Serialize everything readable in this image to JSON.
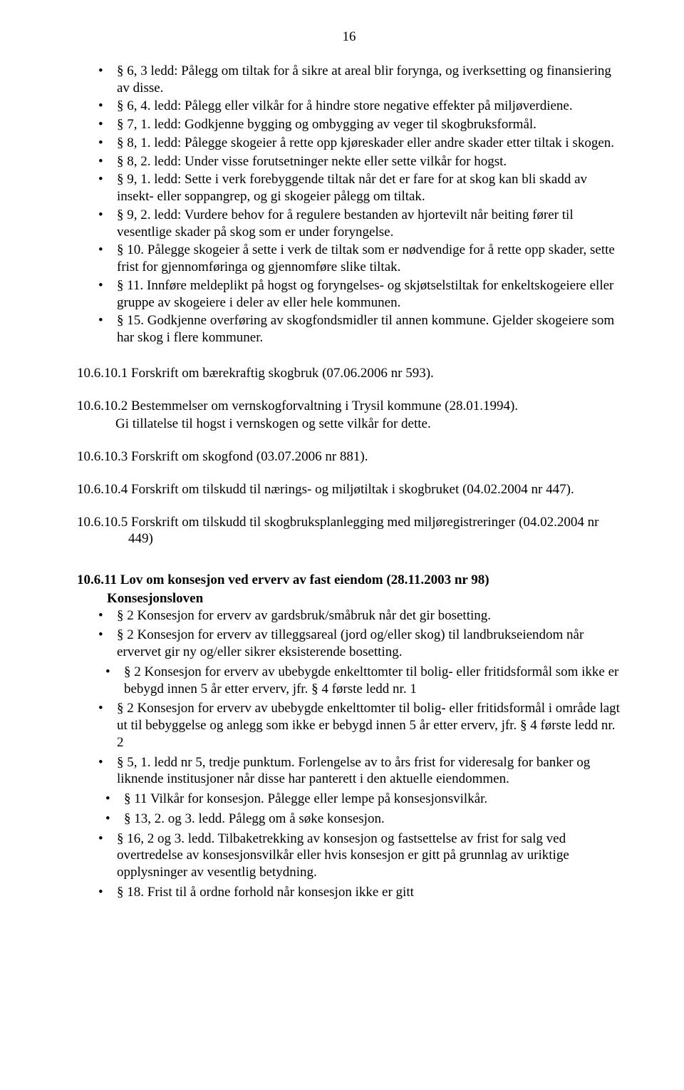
{
  "page_number": "16",
  "bullets_top": [
    "§ 6, 3 ledd: Pålegg om tiltak for å sikre at areal blir forynga, og iverksetting og finansiering av disse.",
    "§ 6, 4. ledd: Pålegg eller vilkår for å hindre store negative effekter på miljøverdiene.",
    "§ 7, 1. ledd: Godkjenne bygging og ombygging av veger til skogbruksformål.",
    "§ 8, 1. ledd: Pålegge skogeier å rette opp kjøreskader eller andre skader etter tiltak i skogen.",
    "§ 8, 2. ledd: Under visse forutsetninger nekte eller sette vilkår for hogst.",
    "§ 9, 1. ledd: Sette i verk forebyggende tiltak når det er fare for at skog kan bli skadd av insekt-  eller soppangrep, og gi skogeier pålegg om tiltak.",
    "§ 9, 2. ledd: Vurdere behov for å regulere bestanden av hjortevilt når beiting fører til vesentlige skader på skog som er under foryngelse.",
    "§ 10. Pålegge skogeier å sette i verk de tiltak som er nødvendige for å rette opp skader, sette frist for gjennomføringa og gjennomføre slike tiltak.",
    "§ 11. Innføre meldeplikt på hogst og foryngelses- og skjøtselstiltak for enkeltskogeiere eller gruppe av skogeiere i deler av eller hele kommunen.",
    "§ 15. Godkjenne overføring av skogfondsmidler til annen kommune. Gjelder skogeiere som har skog i flere kommuner."
  ],
  "middle_paras": [
    {
      "main": "10.6.10.1 Forskrift om bærekraftig skogbruk (07.06.2006 nr 593)."
    },
    {
      "main": "10.6.10.2 Bestemmelser om vernskogforvaltning i Trysil kommune (28.01.1994).",
      "sub": "Gi tillatelse til hogst i vernskogen og sette vilkår for dette."
    },
    {
      "main": "10.6.10.3 Forskrift om skogfond (03.07.2006 nr 881)."
    },
    {
      "main": "10.6.10.4 Forskrift om tilskudd til nærings- og miljøtiltak i skogbruket (04.02.2004 nr 447)."
    },
    {
      "main": "10.6.10.5 Forskrift om tilskudd til skogbruksplanlegging med miljøregistreringer (04.02.2004 nr 449)"
    }
  ],
  "section": {
    "head": "10.6.11 Lov om konsesjon ved erverv av fast eiendom (28.11.2003 nr 98)",
    "sub": "Konsesjonsloven",
    "bullets": [
      {
        "text": "§ 2 Konsesjon for erverv av gardsbruk/småbruk når det gir bosetting.",
        "shift": false
      },
      {
        "text": "§ 2 Konsesjon for erverv av tilleggsareal (jord og/eller skog) til landbrukseiendom når ervervet gir ny og/eller sikrer eksisterende bosetting.",
        "shift": false
      },
      {
        "text": " § 2 Konsesjon for erverv av ubebygde enkelttomter til bolig- eller fritidsformål som ikke er bebygd innen 5 år etter erverv, jfr. § 4 første ledd nr. 1",
        "shift": true
      },
      {
        "text": "§ 2 Konsesjon for erverv av ubebygde enkelttomter til bolig- eller fritidsformål i område lagt ut til bebyggelse og anlegg som ikke er bebygd innen 5 år etter erverv, jfr. § 4 første ledd nr. 2",
        "shift": false
      },
      {
        "text": "§ 5, 1. ledd nr 5, tredje punktum. Forlengelse av to års frist for videresalg for banker og liknende institusjoner når disse har panterett i den aktuelle eiendommen.",
        "shift": false
      },
      {
        "text": "§ 11 Vilkår for konsesjon. Pålegge eller lempe på konsesjonsvilkår.",
        "shift": true
      },
      {
        "text": "§ 13, 2. og 3. ledd. Pålegg om å søke konsesjon.",
        "shift": true
      },
      {
        "text": "§ 16, 2 og 3. ledd. Tilbaketrekking av konsesjon og fastsettelse av frist for salg ved overtredelse av konsesjonsvilkår eller hvis konsesjon er gitt på grunnlag av uriktige opplysninger av vesentlig betydning.",
        "shift": false
      },
      {
        "text": "§ 18. Frist til å ordne forhold når konsesjon ikke er gitt",
        "shift": false
      }
    ]
  }
}
